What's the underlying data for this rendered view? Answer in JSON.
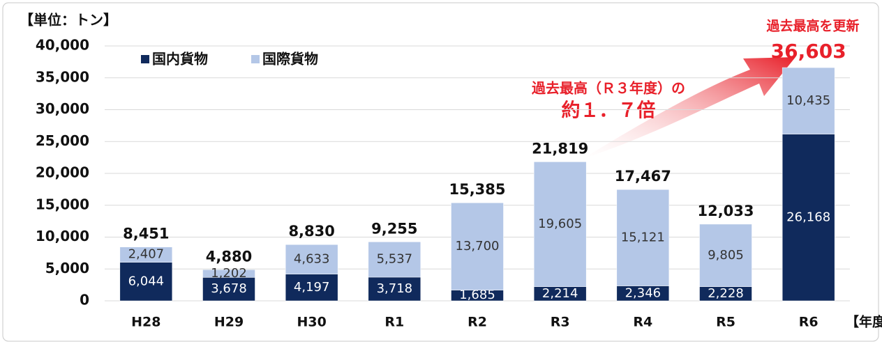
{
  "chart_data": {
    "type": "stacked_bar",
    "unit_label": "【単位：トン】",
    "x_label": "【年度】",
    "categories": [
      "H28",
      "H29",
      "H30",
      "R1",
      "R2",
      "R3",
      "R4",
      "R5",
      "R6"
    ],
    "series": [
      {
        "name": "国内貨物",
        "color": "#102a5c",
        "label_color": "#ffffff",
        "values": [
          6044,
          3678,
          4197,
          3718,
          1685,
          2214,
          2346,
          2228,
          26168
        ],
        "value_labels": [
          "6,044",
          "3,678",
          "4,197",
          "3,718",
          "1,685",
          "2,214",
          "2,346",
          "2,228",
          "26,168"
        ]
      },
      {
        "name": "国際貨物",
        "color": "#b4c7e7",
        "label_color": "#333333",
        "values": [
          2407,
          1202,
          4633,
          5537,
          13700,
          19605,
          15121,
          9805,
          10435
        ],
        "value_labels": [
          "2,407",
          "1,202",
          "4,633",
          "5,537",
          "13,700",
          "19,605",
          "15,121",
          "9,805",
          "10,435"
        ]
      }
    ],
    "totals": [
      8451,
      4880,
      8830,
      9255,
      15385,
      21819,
      17467,
      12033,
      36603
    ],
    "total_labels": [
      "8,451",
      "4,880",
      "8,830",
      "9,255",
      "15,385",
      "21,819",
      "17,467",
      "12,033",
      "36,603"
    ],
    "total_colors": [
      "#111111",
      "#111111",
      "#111111",
      "#111111",
      "#111111",
      "#111111",
      "#111111",
      "#111111",
      "#e8202a"
    ],
    "ylim": [
      0,
      40000
    ],
    "yticks": [
      0,
      {
        "value": 5000,
        "label": "5,000"
      },
      {
        "value": 10000,
        "label": "10,000"
      },
      {
        "value": 15000,
        "label": "15,000"
      },
      {
        "value": 20000,
        "label": "20,000"
      },
      {
        "value": 25000,
        "label": "25,000"
      },
      {
        "value": 30000,
        "label": "30,000"
      },
      {
        "value": 35000,
        "label": "35,000"
      },
      {
        "value": 40000,
        "label": "40,000"
      }
    ],
    "grid": true,
    "legend": "top-left",
    "annotations": {
      "record": "過去最高を更新",
      "comparison": "過去最高（Ｒ３年度）の",
      "ratio": "約１．７倍"
    }
  }
}
